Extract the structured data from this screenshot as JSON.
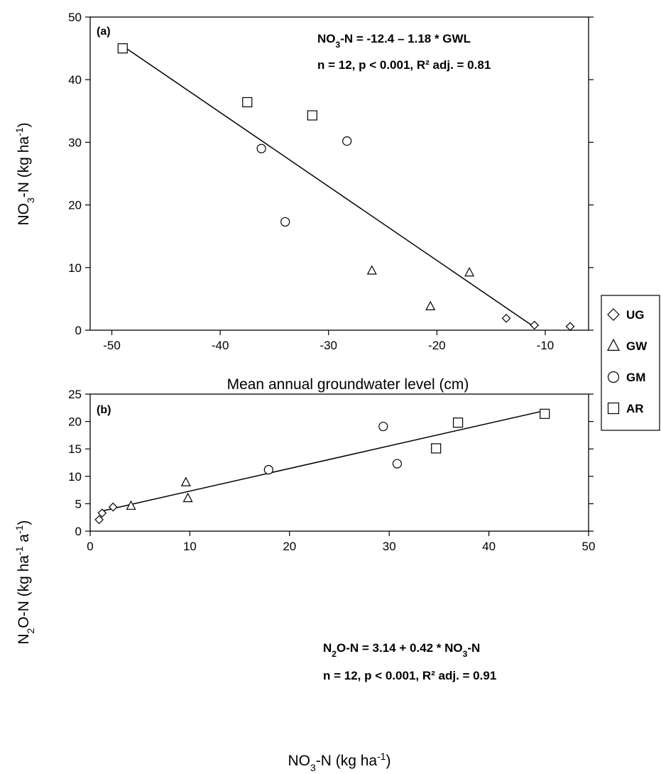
{
  "legend": {
    "items": [
      {
        "label": "UG",
        "marker": "diamond"
      },
      {
        "label": "GW",
        "marker": "triangle"
      },
      {
        "label": "GM",
        "marker": "circle"
      },
      {
        "label": "AR",
        "marker": "square"
      }
    ]
  },
  "chart_data": [
    {
      "type": "scatter",
      "panel_label": "(a)",
      "equation": {
        "lhs": "NO",
        "lhs_sub": "3",
        "rest": "-N = -12.4 – 1.18 * GWL"
      },
      "stats": "n = 12, p < 0.001, R² adj. = 0.81",
      "xlabel": "Mean annual groundwater level (cm)",
      "ylabel": {
        "pre": "NO",
        "sub": "3",
        "mid": "-N (kg ha",
        "sup": "-1",
        "post": ")"
      },
      "xlim": [
        -52,
        -6
      ],
      "ylim": [
        0,
        50
      ],
      "xticks": [
        -50,
        -40,
        -30,
        -20,
        -10
      ],
      "yticks": [
        0,
        10,
        20,
        30,
        40,
        50
      ],
      "series": [
        {
          "name": "UG",
          "marker": "diamond",
          "points": [
            [
              -13.6,
              1.9
            ],
            [
              -11.0,
              0.8
            ],
            [
              -7.7,
              0.6
            ]
          ]
        },
        {
          "name": "GW",
          "marker": "triangle",
          "points": [
            [
              -26.0,
              9.5
            ],
            [
              -20.6,
              3.8
            ],
            [
              -17.0,
              9.2
            ]
          ]
        },
        {
          "name": "GM",
          "marker": "circle",
          "points": [
            [
              -36.2,
              29.0
            ],
            [
              -34.0,
              17.3
            ],
            [
              -28.3,
              30.2
            ]
          ]
        },
        {
          "name": "AR",
          "marker": "square",
          "points": [
            [
              -49.0,
              45.0
            ],
            [
              -37.5,
              36.4
            ],
            [
              -31.5,
              34.3
            ]
          ]
        }
      ],
      "fit": {
        "x": [
          -49.0,
          -11.0
        ],
        "y": [
          45.4,
          0.5
        ]
      }
    },
    {
      "type": "scatter",
      "panel_label": "(b)",
      "equation": {
        "lhs": "N",
        "lhs_sub": "2",
        "rest": "O-N = 3.14 + 0.42 * NO",
        "rest_sub": "3",
        "rest_post": "-N"
      },
      "stats": "n = 12, p < 0.001, R² adj. = 0.91",
      "xlabel": {
        "pre": "NO",
        "sub": "3",
        "mid": "-N (kg ha",
        "sup": "-1",
        "post": ")"
      },
      "ylabel": {
        "pre": "N",
        "sub": "2",
        "mid": "O-N (kg ha",
        "sup": "-1",
        "mid2": " a",
        "sup2": "-1",
        "post": ")"
      },
      "xlim": [
        0,
        50
      ],
      "ylim": [
        0,
        25
      ],
      "xticks": [
        0,
        10,
        20,
        30,
        40,
        50
      ],
      "yticks": [
        0,
        5,
        10,
        15,
        20,
        25
      ],
      "series": [
        {
          "name": "UG",
          "marker": "diamond",
          "points": [
            [
              0.9,
              2.1
            ],
            [
              1.2,
              3.3
            ],
            [
              2.3,
              4.4
            ]
          ]
        },
        {
          "name": "GW",
          "marker": "triangle",
          "points": [
            [
              4.1,
              4.6
            ],
            [
              9.6,
              8.9
            ],
            [
              9.8,
              6.0
            ]
          ]
        },
        {
          "name": "GM",
          "marker": "circle",
          "points": [
            [
              17.9,
              11.2
            ],
            [
              29.4,
              19.1
            ],
            [
              30.8,
              12.3
            ]
          ]
        },
        {
          "name": "AR",
          "marker": "square",
          "points": [
            [
              34.7,
              15.1
            ],
            [
              36.9,
              19.8
            ],
            [
              45.6,
              21.4
            ]
          ]
        }
      ],
      "fit": {
        "x": [
          1.0,
          45.4
        ],
        "y": [
          3.6,
          21.9
        ]
      }
    }
  ]
}
